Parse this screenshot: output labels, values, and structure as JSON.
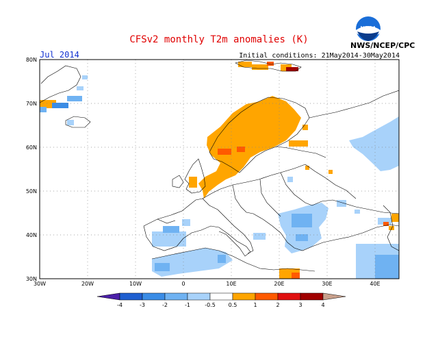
{
  "title": "CFSv2 monthly T2m anomalies (K)",
  "period_label": "Jul 2014",
  "initial_conditions": "Initial conditions: 21May2014-30May2014",
  "agency": "NWS/NCEP/CPC",
  "logo_text": "NOAA",
  "axes": {
    "lat_labels": [
      "80N",
      "70N",
      "60N",
      "50N",
      "40N",
      "30N"
    ],
    "lon_labels": [
      "30W",
      "20W",
      "10W",
      "0",
      "10E",
      "20E",
      "30E",
      "40E"
    ]
  },
  "colorbar": {
    "labels": [
      "-4",
      "-3",
      "-2",
      "-1",
      "-0.5",
      "0.5",
      "1",
      "2",
      "3",
      "4"
    ],
    "colors": [
      "#4b1fa8",
      "#1f5fd0",
      "#3a8ce6",
      "#6fb2f2",
      "#a8d2fa",
      "#ffffff",
      "#ffa500",
      "#ff5a00",
      "#e01010",
      "#a00000",
      "#c8a08c"
    ]
  }
}
